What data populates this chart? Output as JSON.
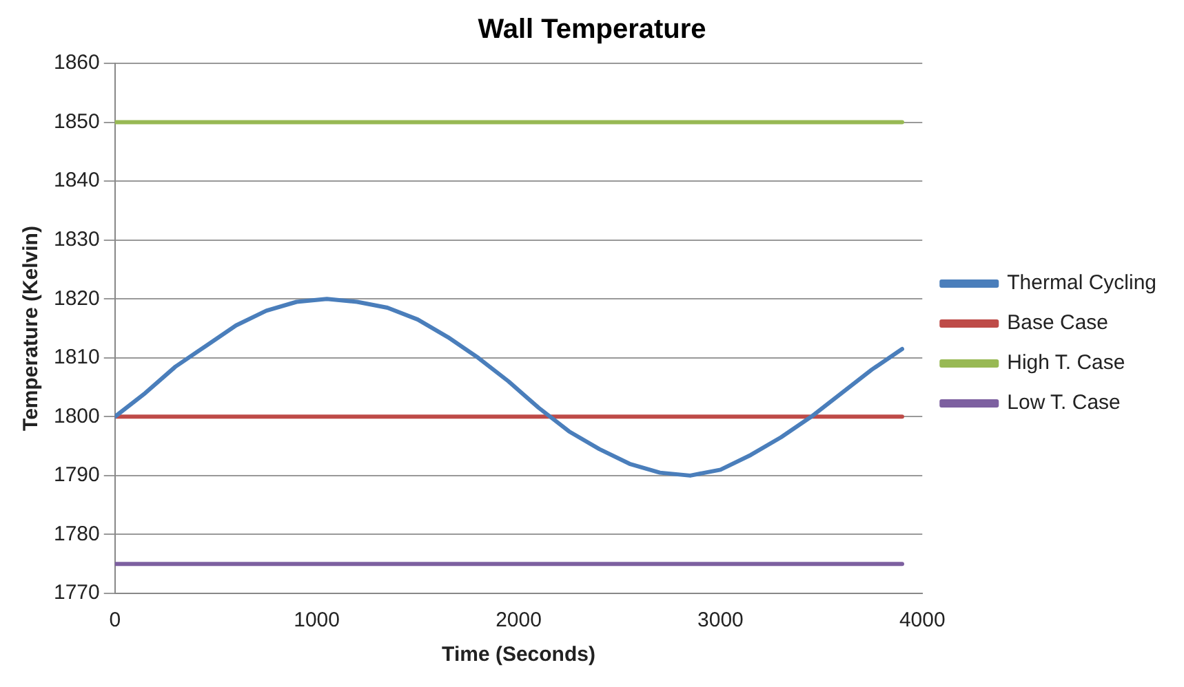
{
  "chart_data": {
    "type": "line",
    "title": "Wall Temperature",
    "xlabel": "Time (Seconds)",
    "ylabel": "Temperature (Kelvin)",
    "xlim": [
      0,
      4000
    ],
    "xticks": [
      0,
      1000,
      2000,
      3000,
      4000
    ],
    "ylim": [
      1770,
      1860
    ],
    "yticks": [
      1770,
      1780,
      1790,
      1800,
      1810,
      1820,
      1830,
      1840,
      1850,
      1860
    ],
    "grid": "y",
    "legend": "right",
    "marker": "none",
    "line_style": "solid",
    "series": [
      {
        "name": "Thermal Cycling",
        "color": "#4a7ebb",
        "x": [
          0,
          150,
          300,
          450,
          600,
          750,
          900,
          1050,
          1200,
          1350,
          1500,
          1650,
          1800,
          1950,
          2100,
          2250,
          2400,
          2550,
          2700,
          2850,
          3000,
          3150,
          3300,
          3450,
          3600,
          3750,
          3900
        ],
        "values": [
          1800,
          1804,
          1808.5,
          1812,
          1815.5,
          1818,
          1819.5,
          1820,
          1819.5,
          1818.5,
          1816.5,
          1813.5,
          1810,
          1806,
          1801.5,
          1797.5,
          1794.5,
          1792,
          1790.5,
          1790,
          1791,
          1793.5,
          1796.5,
          1800,
          1804,
          1808,
          1811.5
        ]
      },
      {
        "name": "Base Case",
        "color": "#be4b48",
        "x": [
          0,
          3900
        ],
        "values": [
          1800,
          1800
        ]
      },
      {
        "name": "High T. Case",
        "color": "#98b954",
        "x": [
          0,
          3900
        ],
        "values": [
          1850,
          1850
        ]
      },
      {
        "name": "Low T. Case",
        "color": "#7d60a0",
        "x": [
          0,
          3900
        ],
        "values": [
          1775,
          1775
        ]
      }
    ]
  }
}
